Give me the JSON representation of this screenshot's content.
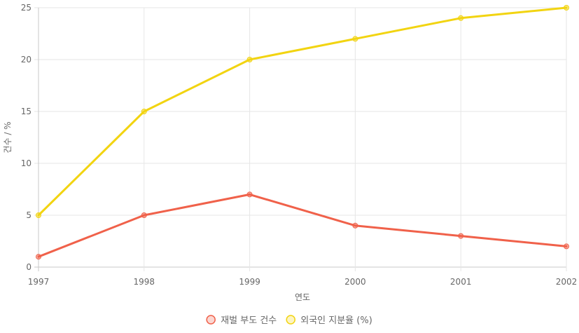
{
  "chart_data": {
    "type": "line",
    "title": "",
    "xlabel": "연도",
    "ylabel": "건수 / %",
    "categories": [
      "1997",
      "1998",
      "1999",
      "2000",
      "2001",
      "2002"
    ],
    "ylim": [
      0,
      25
    ],
    "yticks": [
      0,
      5,
      10,
      15,
      20,
      25
    ],
    "grid": true,
    "legend_position": "bottom",
    "series": [
      {
        "name": "재벌 부도 건수",
        "values": [
          1,
          5,
          7,
          4,
          3,
          2
        ],
        "color": "#f0614a"
      },
      {
        "name": "외국인 지분율 (%)",
        "values": [
          5,
          15,
          20,
          22,
          24,
          25
        ],
        "color": "#f2d411"
      }
    ]
  }
}
